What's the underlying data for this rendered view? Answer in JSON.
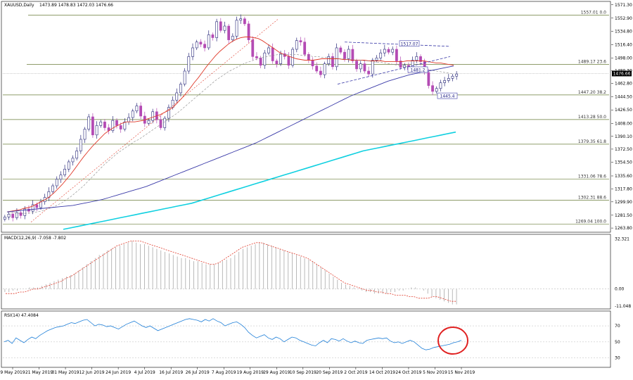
{
  "main_header": {
    "symbol": "XAUUSD,Daily",
    "ohlc": "1473.89 1478.83 1472.03 1476.66"
  },
  "chart_data": [
    {
      "type": "candlestick",
      "panel": "price",
      "symbol": "XAUUSD,Daily",
      "ylim": [
        1260,
        1574
      ],
      "y_ticks": [
        "1571.30",
        "1552.90",
        "1534.80",
        "1516.40",
        "1498.00",
        "1480.30",
        "1462.80",
        "1444.50",
        "1426.50",
        "1408.00",
        "1390.10",
        "1372.50",
        "1354.50",
        "1335.60",
        "1317.80",
        "1299.90",
        "1281.50",
        "1263.80"
      ],
      "current_price": "1476.66",
      "fib_levels": [
        {
          "price": 1557.01,
          "label": "1557.01  0.0"
        },
        {
          "price": 1489.17,
          "label": "1489.17  23.6"
        },
        {
          "price": 1447.2,
          "label": "1447.20  38.2"
        },
        {
          "price": 1413.28,
          "label": "1413.28  50.0"
        },
        {
          "price": 1379.35,
          "label": "1379.35  61.8"
        },
        {
          "price": 1331.06,
          "label": "1331.06  78.6"
        },
        {
          "price": 1302.31,
          "label": "1302.31  88.6"
        },
        {
          "price": 1269.04,
          "label": "1269.04  100.0"
        }
      ],
      "annotations": [
        {
          "text": "1517.07",
          "price": 1517
        },
        {
          "text": "1481.2",
          "price": 1481
        },
        {
          "text": "1445.4",
          "price": 1445
        }
      ],
      "ohlc_close_path": [
        1279,
        1283,
        1278,
        1285,
        1281,
        1290,
        1287,
        1296,
        1292,
        1300,
        1306,
        1314,
        1322,
        1331,
        1337,
        1345,
        1355,
        1360,
        1370,
        1386,
        1400,
        1417,
        1392,
        1405,
        1410,
        1402,
        1398,
        1412,
        1405,
        1400,
        1410,
        1416,
        1425,
        1432,
        1418,
        1408,
        1412,
        1424,
        1413,
        1402,
        1415,
        1430,
        1440,
        1450,
        1462,
        1480,
        1500,
        1512,
        1520,
        1517,
        1512,
        1530,
        1526,
        1548,
        1536,
        1542,
        1523,
        1528,
        1550,
        1552,
        1545,
        1523,
        1500,
        1498,
        1488,
        1505,
        1512,
        1494,
        1490,
        1504,
        1500,
        1488,
        1510,
        1522,
        1520,
        1503,
        1495,
        1487,
        1480,
        1475,
        1490,
        1500,
        1486,
        1512,
        1506,
        1497,
        1510,
        1494,
        1483,
        1490,
        1480,
        1476,
        1495,
        1498,
        1505,
        1510,
        1506,
        1510,
        1494,
        1485,
        1488,
        1482,
        1495,
        1500,
        1493,
        1478,
        1460,
        1452,
        1456,
        1464,
        1467,
        1470,
        1473,
        1476
      ],
      "sma_fast": [
        1286,
        1287,
        1288,
        1289,
        1291,
        1292,
        1294,
        1297,
        1300,
        1303,
        1307,
        1312,
        1318,
        1324,
        1331,
        1338,
        1346,
        1354,
        1362,
        1369,
        1376,
        1382,
        1388,
        1394,
        1398,
        1402,
        1405,
        1408,
        1410,
        1410,
        1410,
        1411,
        1412,
        1414,
        1416,
        1418,
        1420,
        1423,
        1426,
        1430,
        1436,
        1442,
        1449,
        1456,
        1464,
        1471,
        1479,
        1487,
        1494,
        1501,
        1507,
        1512,
        1517,
        1521,
        1524,
        1526,
        1527,
        1527,
        1526,
        1525,
        1522,
        1518,
        1514,
        1510,
        1506,
        1503,
        1501,
        1499,
        1497,
        1496,
        1495,
        1495,
        1495,
        1496,
        1497,
        1497,
        1497,
        1497,
        1497,
        1496,
        1496,
        1495,
        1495,
        1495,
        1495,
        1494,
        1494,
        1494,
        1494,
        1493,
        1493,
        1493,
        1493,
        1493,
        1494,
        1494,
        1494,
        1494,
        1494,
        1493,
        1492,
        1491,
        1491,
        1490,
        1489,
        1488
      ],
      "sma_slow": [
        1286,
        1285,
        1285,
        1284,
        1284,
        1284,
        1285,
        1286,
        1287,
        1289,
        1291,
        1293,
        1296,
        1299,
        1303,
        1307,
        1312,
        1317,
        1322,
        1328,
        1334,
        1340,
        1346,
        1352,
        1357,
        1362,
        1367,
        1371,
        1375,
        1379,
        1383,
        1386,
        1390,
        1394,
        1398,
        1402,
        1406,
        1410,
        1414,
        1418,
        1422,
        1427,
        1432,
        1437,
        1442,
        1447,
        1452,
        1457,
        1462,
        1467,
        1471,
        1475,
        1479,
        1482,
        1485,
        1488,
        1491,
        1493,
        1495,
        1497,
        1499,
        1500,
        1501,
        1502,
        1503,
        1503,
        1503,
        1503,
        1503,
        1502,
        1502,
        1501,
        1500,
        1500,
        1499,
        1499,
        1498,
        1498,
        1497,
        1497,
        1496,
        1496,
        1495,
        1495,
        1494,
        1494,
        1493,
        1492,
        1492,
        1491,
        1490,
        1489,
        1488,
        1487,
        1486,
        1486,
        1485,
        1484,
        1483,
        1482,
        1481,
        1480,
        1479,
        1478,
        1477,
        1476
      ],
      "ma_100": [
        1286,
        1287,
        1288,
        1289,
        1290,
        1291,
        1292,
        1293,
        1294,
        1295,
        1297,
        1299,
        1301,
        1303,
        1306,
        1309,
        1312,
        1315,
        1318,
        1321,
        1325,
        1329,
        1333,
        1337,
        1341,
        1345,
        1349,
        1353,
        1357,
        1361,
        1365,
        1369,
        1373,
        1377,
        1381,
        1386,
        1391,
        1396,
        1401,
        1406,
        1411,
        1416,
        1421,
        1426,
        1431,
        1436,
        1441,
        1446,
        1450,
        1454,
        1458,
        1462,
        1466,
        1469,
        1472,
        1475,
        1477,
        1479,
        1481,
        1483,
        1485,
        1487
      ],
      "ma_200": [
        1262,
        1264,
        1266,
        1268,
        1270,
        1272,
        1274,
        1276,
        1278,
        1280,
        1282,
        1284,
        1286,
        1288,
        1290,
        1292,
        1294,
        1296,
        1298,
        1301,
        1304,
        1307,
        1310,
        1313,
        1316,
        1319,
        1322,
        1325,
        1328,
        1331,
        1334,
        1337,
        1340,
        1343,
        1346,
        1349,
        1352,
        1355,
        1358,
        1361,
        1364,
        1367,
        1370,
        1372,
        1374,
        1376,
        1378,
        1380,
        1382,
        1384,
        1386,
        1388,
        1390,
        1392,
        1394,
        1396
      ]
    },
    {
      "type": "bar",
      "panel": "macd",
      "header": "MACD(12,26,9) -7.058 -7.802",
      "y_ticks": [
        "32.321",
        "0.00",
        "-11.048"
      ],
      "ylim": [
        -12,
        34
      ],
      "histogram": [
        -2,
        -2,
        -1,
        -1,
        0,
        0,
        1,
        1,
        1,
        2,
        3,
        4,
        5,
        6,
        7,
        8,
        9,
        10,
        12,
        14,
        16,
        18,
        20,
        22,
        23,
        25,
        26,
        27,
        28,
        29,
        30,
        31,
        30,
        29,
        29,
        28,
        27,
        26,
        25,
        24,
        23,
        22,
        21,
        20,
        20,
        19,
        18,
        18,
        17,
        16,
        16,
        16,
        17,
        18,
        19,
        20,
        22,
        24,
        26,
        27,
        28,
        29,
        30,
        30,
        29,
        28,
        27,
        26,
        25,
        24,
        23,
        22,
        21,
        20,
        19,
        18,
        16,
        14,
        12,
        10,
        8,
        6,
        4,
        3,
        2,
        1,
        0,
        -1,
        -2,
        -2,
        -3,
        -3,
        -3,
        -3,
        -2,
        -2,
        -1,
        -1,
        0,
        1,
        1,
        0,
        -1,
        -3,
        -5,
        -6,
        -7,
        -8,
        -9,
        -10,
        -10
      ],
      "signal": [
        -3,
        -3,
        -3,
        -2,
        -2,
        -1,
        0,
        0,
        1,
        2,
        3,
        4,
        5,
        7,
        8,
        10,
        12,
        14,
        16,
        18,
        20,
        22,
        24,
        26,
        28,
        29,
        30,
        31,
        31,
        31,
        30,
        29,
        28,
        27,
        26,
        25,
        24,
        23,
        22,
        21,
        20,
        19,
        18,
        17,
        16,
        16,
        17,
        19,
        21,
        23,
        25,
        27,
        28,
        29,
        30,
        30,
        29,
        28,
        27,
        26,
        25,
        24,
        23,
        22,
        21,
        20,
        18,
        16,
        14,
        12,
        10,
        8,
        6,
        4,
        3,
        2,
        1,
        0,
        -1,
        -1,
        -2,
        -2,
        -3,
        -3,
        -4,
        -4,
        -4,
        -5,
        -5,
        -6,
        -6,
        -6,
        -5,
        -5,
        -6,
        -7,
        -8,
        -8
      ]
    },
    {
      "type": "line",
      "panel": "rsi",
      "header": "RSI(14) 47.4084",
      "y_ticks": [
        "70",
        "50",
        "30"
      ],
      "ylim": [
        20,
        85
      ],
      "levels": [
        70,
        50,
        30
      ],
      "values": [
        50,
        52,
        48,
        55,
        52,
        49,
        53,
        56,
        54,
        58,
        61,
        64,
        66,
        68,
        69,
        70,
        72,
        74,
        73,
        75,
        77,
        78,
        74,
        70,
        72,
        71,
        69,
        70,
        68,
        66,
        69,
        72,
        74,
        76,
        73,
        70,
        68,
        70,
        67,
        64,
        66,
        68,
        70,
        72,
        74,
        76,
        78,
        79,
        78,
        77,
        75,
        78,
        76,
        79,
        76,
        74,
        70,
        72,
        74,
        75,
        72,
        68,
        62,
        58,
        55,
        57,
        59,
        55,
        53,
        56,
        54,
        50,
        53,
        56,
        55,
        52,
        50,
        48,
        46,
        45,
        49,
        52,
        49,
        54,
        53,
        51,
        54,
        51,
        49,
        51,
        49,
        48,
        52,
        53,
        54,
        55,
        54,
        55,
        51,
        49,
        50,
        48,
        50,
        52,
        50,
        46,
        42,
        40,
        41,
        43,
        44,
        45,
        46,
        47,
        49,
        50,
        52
      ],
      "circle_highlight": true
    }
  ],
  "x_axis": {
    "dates": [
      "9 May 2019",
      "21 May 2019",
      "31 May 2019",
      "12 Jun 2019",
      "24 Jun 2019",
      "4 Jul 2019",
      "16 Jul 2019",
      "26 Jul 2019",
      "7 Aug 2019",
      "19 Aug 2019",
      "29 Aug 2019",
      "10 Sep 2019",
      "20 Sep 2019",
      "2 Oct 2019",
      "14 Oct 2019",
      "24 Oct 2019",
      "5 Nov 2019",
      "15 Nov 2019"
    ]
  },
  "colors": {
    "bull": "#2a2a7a",
    "bear": "#b44bb4",
    "sma_fast": "#e03a2a",
    "ma100": "#3a3aa8",
    "ma200": "#10d0e0",
    "fib": "#6a7d3a",
    "rsi": "#1e7fd8",
    "macd_signal": "#e03a2a",
    "circle": "#e02020"
  }
}
